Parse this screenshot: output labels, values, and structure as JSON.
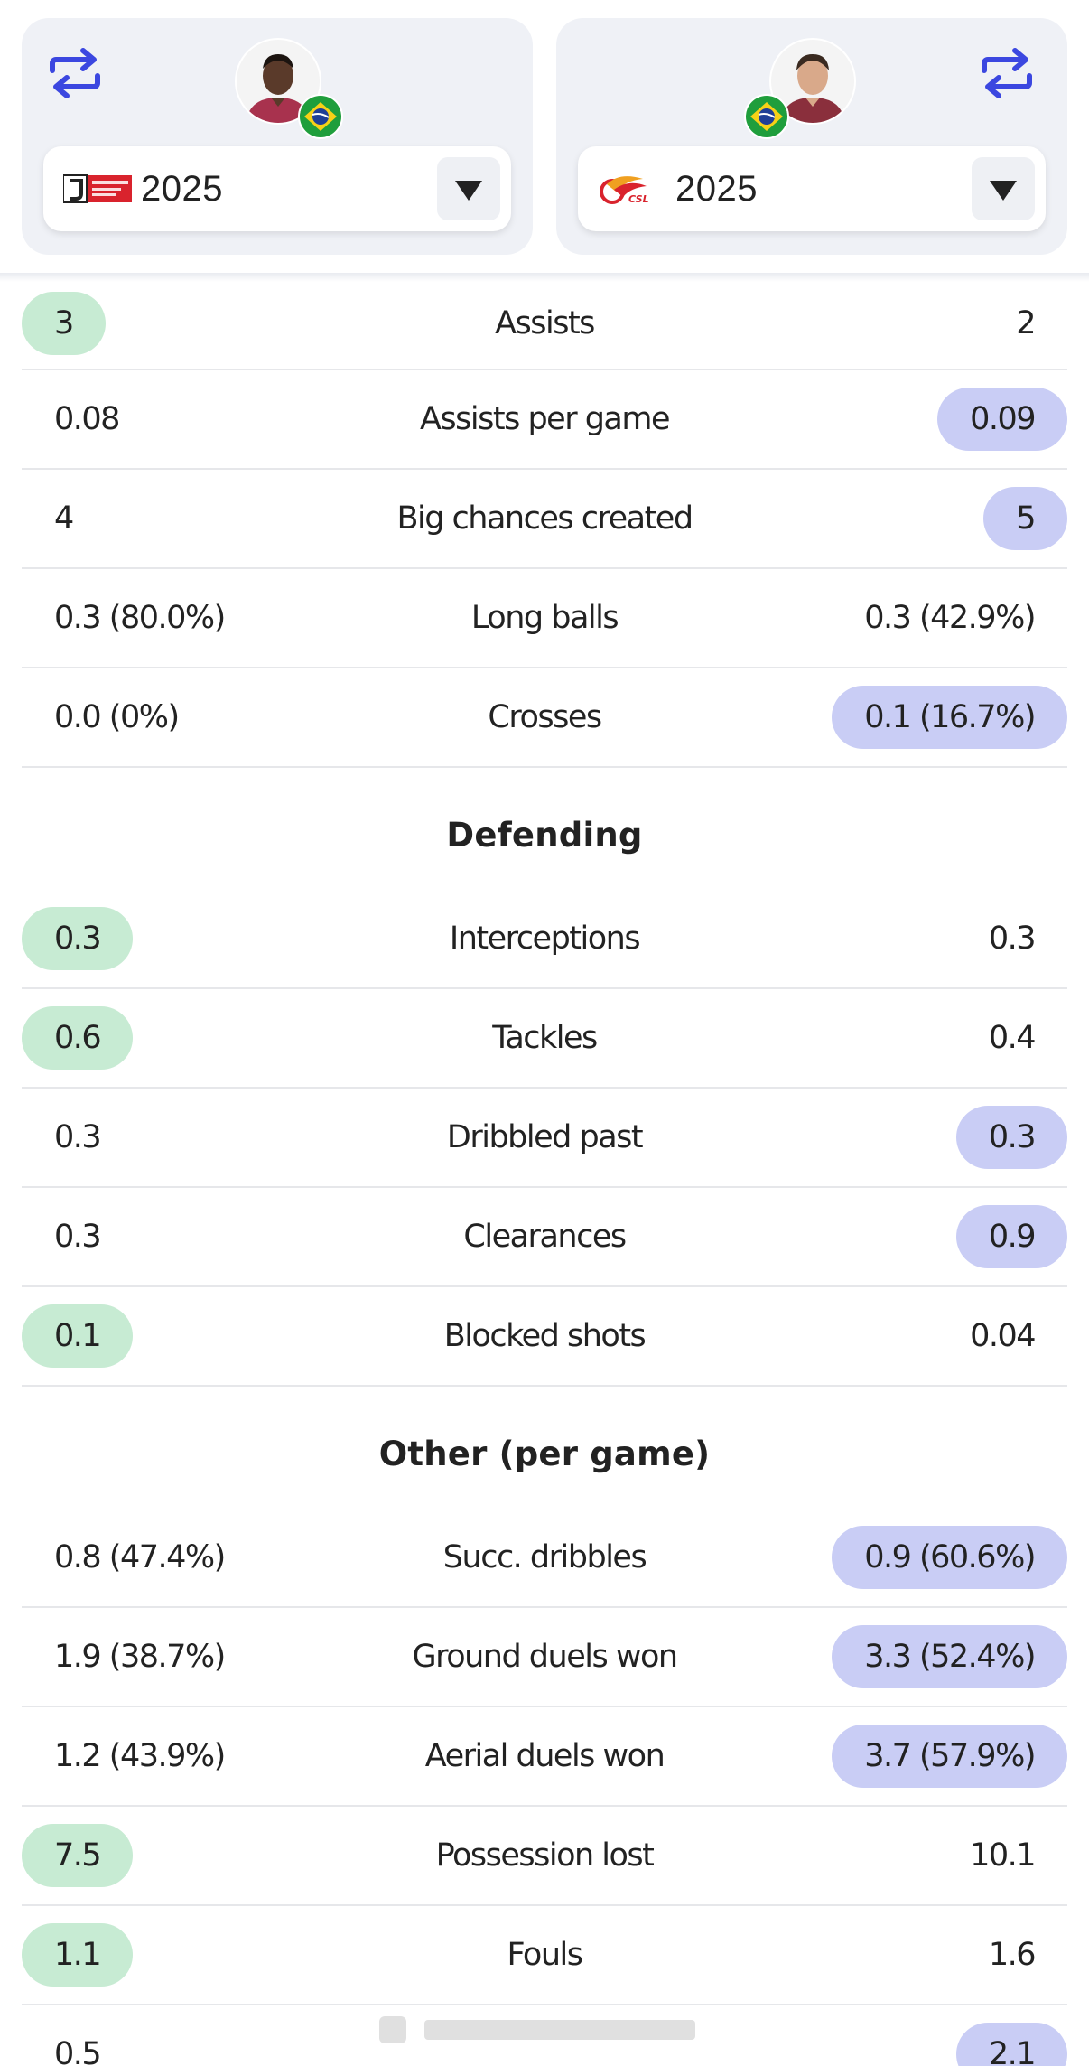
{
  "players": [
    {
      "side": "left",
      "swap_icon": "swap-arrows-icon",
      "avatar_icon": "player-avatar",
      "flag_icon": "brazil-flag-icon",
      "league_logo_icon": "j1-league-logo",
      "season": "2025",
      "accent": "#c7ebd3"
    },
    {
      "side": "right",
      "swap_icon": "swap-arrows-icon",
      "avatar_icon": "player-avatar",
      "flag_icon": "brazil-flag-icon",
      "league_logo_icon": "csl-logo",
      "season": "2025",
      "accent": "#c9cdf5"
    }
  ],
  "sections": [
    {
      "title": "",
      "rows": [
        {
          "label": "Assists",
          "left": "3",
          "right": "2",
          "better": "left"
        },
        {
          "label": "Assists per game",
          "left": "0.08",
          "right": "0.09",
          "better": "right"
        },
        {
          "label": "Big chances created",
          "left": "4",
          "right": "5",
          "better": "right"
        },
        {
          "label": "Long balls",
          "left": "0.3 (80.0%)",
          "right": "0.3 (42.9%)",
          "better": "none"
        },
        {
          "label": "Crosses",
          "left": "0.0 (0%)",
          "right": "0.1 (16.7%)",
          "better": "right"
        }
      ]
    },
    {
      "title": "Defending",
      "rows": [
        {
          "label": "Interceptions",
          "left": "0.3",
          "right": "0.3",
          "better": "left"
        },
        {
          "label": "Tackles",
          "left": "0.6",
          "right": "0.4",
          "better": "left"
        },
        {
          "label": "Dribbled past",
          "left": "0.3",
          "right": "0.3",
          "better": "right"
        },
        {
          "label": "Clearances",
          "left": "0.3",
          "right": "0.9",
          "better": "right"
        },
        {
          "label": "Blocked shots",
          "left": "0.1",
          "right": "0.04",
          "better": "left"
        }
      ]
    },
    {
      "title": "Other (per game)",
      "rows": [
        {
          "label": "Succ. dribbles",
          "left": "0.8 (47.4%)",
          "right": "0.9 (60.6%)",
          "better": "right"
        },
        {
          "label": "Ground duels won",
          "left": "1.9 (38.7%)",
          "right": "3.3 (52.4%)",
          "better": "right"
        },
        {
          "label": "Aerial duels won",
          "left": "1.2 (43.9%)",
          "right": "3.7 (57.9%)",
          "better": "right"
        },
        {
          "label": "Possession lost",
          "left": "7.5",
          "right": "10.1",
          "better": "left"
        },
        {
          "label": "Fouls",
          "left": "1.1",
          "right": "1.6",
          "better": "left"
        },
        {
          "label": "",
          "left": "0.5",
          "right": "2.1",
          "better": "right"
        }
      ]
    }
  ],
  "colors": {
    "better_left": "#c7ebd3",
    "better_right": "#c9cdf5",
    "card_bg": "#eff1f6",
    "swap_icon": "#3b47e0"
  }
}
